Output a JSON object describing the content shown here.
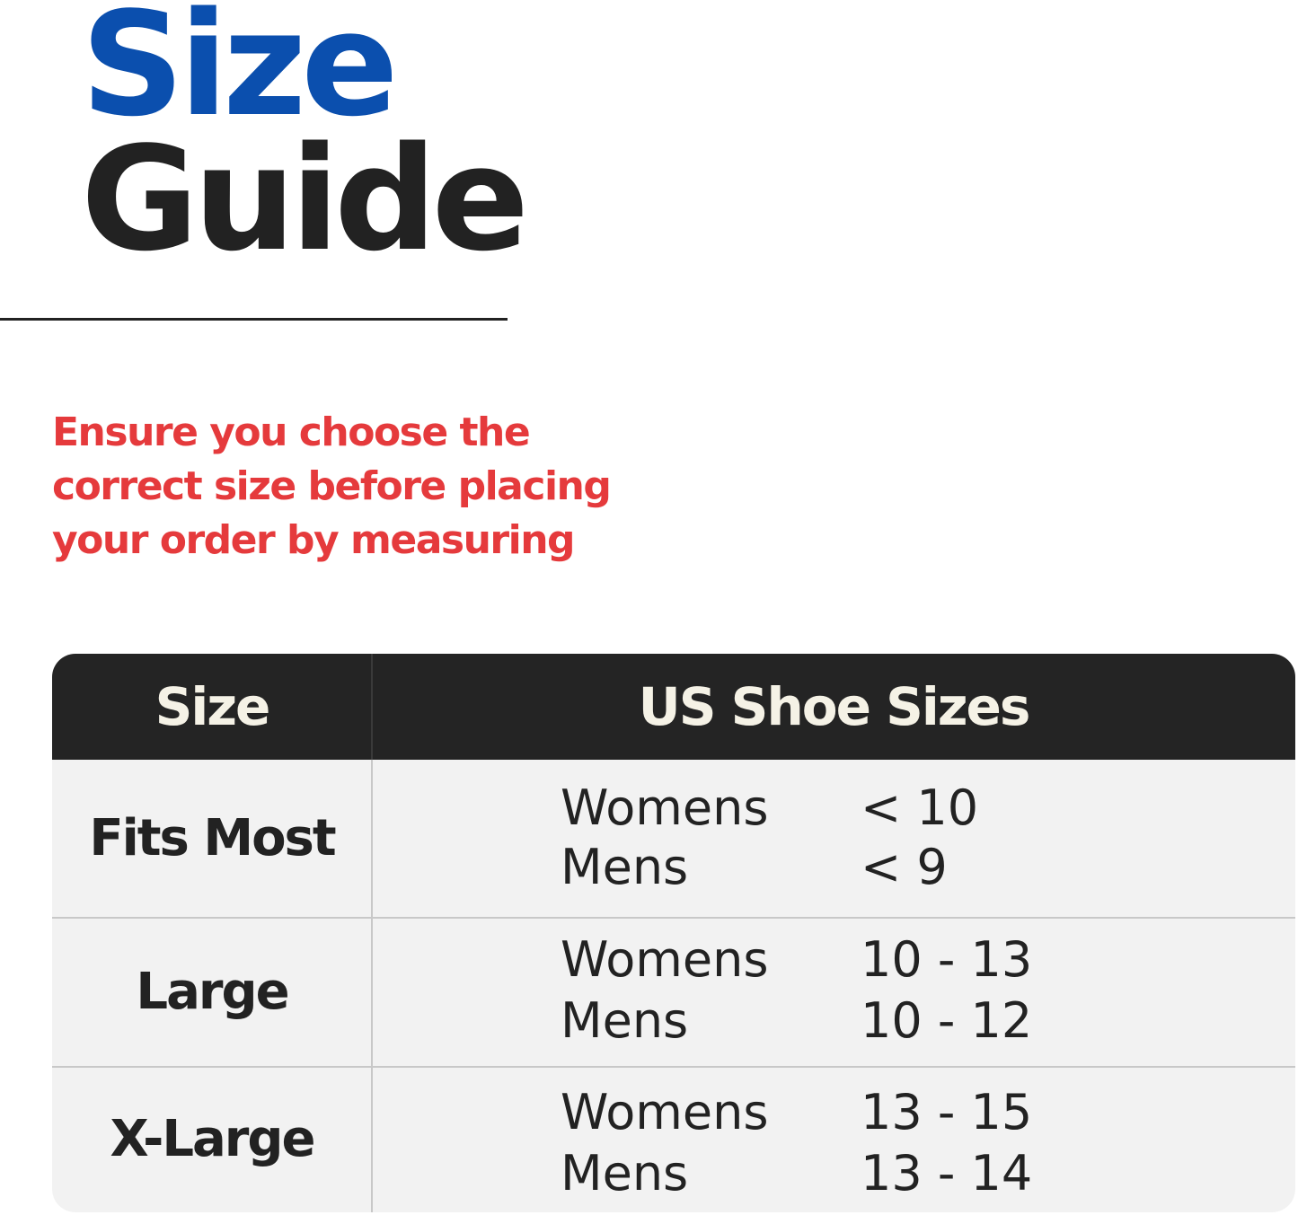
{
  "title": {
    "line1": "Size",
    "line2": "Guide"
  },
  "note": "Ensure you choose the correct size before placing your order by measuring",
  "colors": {
    "title_blue": "#0b4fae",
    "note_red": "#e53a3c",
    "header_bg": "#242424",
    "row_bg": "#f2f2f2"
  },
  "table": {
    "headers": [
      "Size",
      "US Shoe Sizes"
    ],
    "rows": [
      {
        "size": "Fits Most",
        "womens_label": "Womens",
        "womens": "< 10",
        "mens_label": "Mens",
        "mens": "< 9"
      },
      {
        "size": "Large",
        "womens_label": "Womens",
        "womens": "10 - 13",
        "mens_label": "Mens",
        "mens": "10 - 12"
      },
      {
        "size": "X-Large",
        "womens_label": "Womens",
        "womens": "13 - 15",
        "mens_label": "Mens",
        "mens": "13 - 14"
      }
    ]
  }
}
